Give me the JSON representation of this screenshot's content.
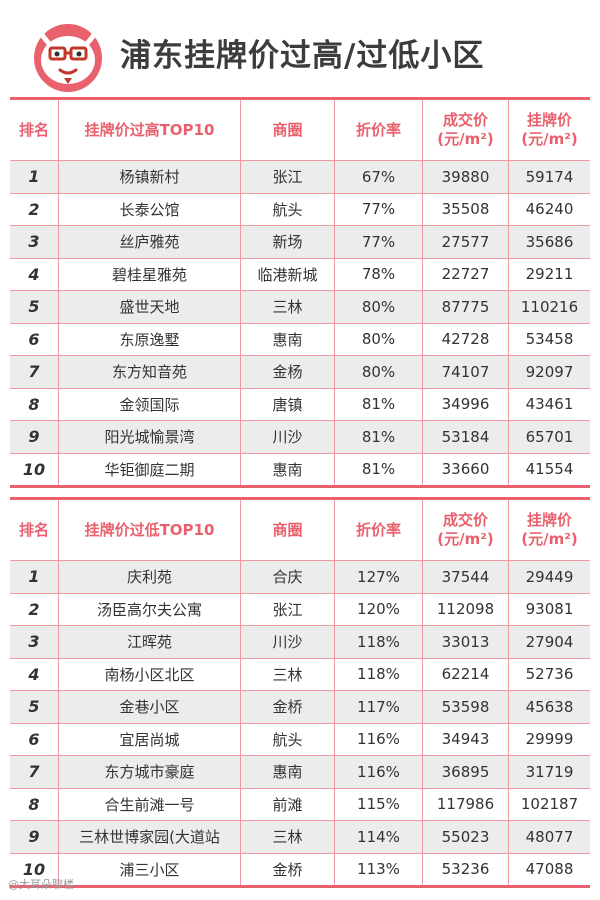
{
  "page": {
    "title": "浦东挂牌价过高/过低小区",
    "watermark": "@大耳朵聊楼"
  },
  "colors": {
    "accent": "#e8616d",
    "row_shade": "#ececec",
    "grid_line": "#ef9aa2"
  },
  "icons": {
    "logo": "cartoon-rabbit-logo-icon"
  },
  "table_high": {
    "headers": {
      "rank": "排名",
      "name": "挂牌价过高TOP10",
      "area": "商圈",
      "rate": "折价率",
      "deal_line1": "成交价",
      "deal_line2": "(元/m²)",
      "list_line1": "挂牌价",
      "list_line2": "(元/m²)"
    },
    "rows": [
      {
        "rank": "1",
        "name": "杨镇新村",
        "area": "张江",
        "rate": "67%",
        "deal": "39880",
        "list": "59174"
      },
      {
        "rank": "2",
        "name": "长泰公馆",
        "area": "航头",
        "rate": "77%",
        "deal": "35508",
        "list": "46240"
      },
      {
        "rank": "3",
        "name": "丝庐雅苑",
        "area": "新场",
        "rate": "77%",
        "deal": "27577",
        "list": "35686"
      },
      {
        "rank": "4",
        "name": "碧桂星雅苑",
        "area": "临港新城",
        "rate": "78%",
        "deal": "22727",
        "list": "29211"
      },
      {
        "rank": "5",
        "name": "盛世天地",
        "area": "三林",
        "rate": "80%",
        "deal": "87775",
        "list": "110216"
      },
      {
        "rank": "6",
        "name": "东原逸墅",
        "area": "惠南",
        "rate": "80%",
        "deal": "42728",
        "list": "53458"
      },
      {
        "rank": "7",
        "name": "东方知音苑",
        "area": "金杨",
        "rate": "80%",
        "deal": "74107",
        "list": "92097"
      },
      {
        "rank": "8",
        "name": "金领国际",
        "area": "唐镇",
        "rate": "81%",
        "deal": "34996",
        "list": "43461"
      },
      {
        "rank": "9",
        "name": "阳光城愉景湾",
        "area": "川沙",
        "rate": "81%",
        "deal": "53184",
        "list": "65701"
      },
      {
        "rank": "10",
        "name": "华钜御庭二期",
        "area": "惠南",
        "rate": "81%",
        "deal": "33660",
        "list": "41554"
      }
    ]
  },
  "table_low": {
    "headers": {
      "rank": "排名",
      "name": "挂牌价过低TOP10",
      "area": "商圈",
      "rate": "折价率",
      "deal_line1": "成交价",
      "deal_line2": "(元/m²)",
      "list_line1": "挂牌价",
      "list_line2": "(元/m²)"
    },
    "rows": [
      {
        "rank": "1",
        "name": "庆利苑",
        "area": "合庆",
        "rate": "127%",
        "deal": "37544",
        "list": "29449"
      },
      {
        "rank": "2",
        "name": "汤臣高尔夫公寓",
        "area": "张江",
        "rate": "120%",
        "deal": "112098",
        "list": "93081"
      },
      {
        "rank": "3",
        "name": "江晖苑",
        "area": "川沙",
        "rate": "118%",
        "deal": "33013",
        "list": "27904"
      },
      {
        "rank": "4",
        "name": "南杨小区北区",
        "area": "三林",
        "rate": "118%",
        "deal": "62214",
        "list": "52736"
      },
      {
        "rank": "5",
        "name": "金巷小区",
        "area": "金桥",
        "rate": "117%",
        "deal": "53598",
        "list": "45638"
      },
      {
        "rank": "6",
        "name": "宜居尚城",
        "area": "航头",
        "rate": "116%",
        "deal": "34943",
        "list": "29999"
      },
      {
        "rank": "7",
        "name": "东方城市豪庭",
        "area": "惠南",
        "rate": "116%",
        "deal": "36895",
        "list": "31719"
      },
      {
        "rank": "8",
        "name": "合生前滩一号",
        "area": "前滩",
        "rate": "115%",
        "deal": "117986",
        "list": "102187"
      },
      {
        "rank": "9",
        "name": "三林世博家园(大道站",
        "area": "三林",
        "rate": "114%",
        "deal": "55023",
        "list": "48077"
      },
      {
        "rank": "10",
        "name": "浦三小区",
        "area": "金桥",
        "rate": "113%",
        "deal": "53236",
        "list": "47088"
      }
    ]
  }
}
